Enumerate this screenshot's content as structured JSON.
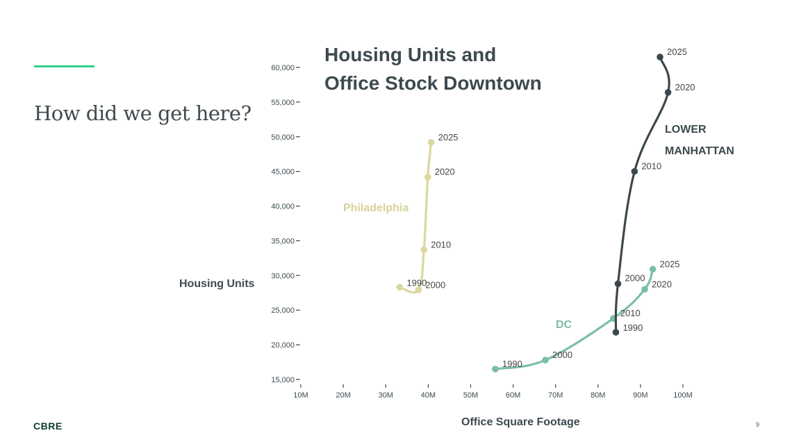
{
  "slide": {
    "heading": "How did we get here?",
    "logo": "CBRE",
    "page_number": "9",
    "colors": {
      "accent_rule": "#2fd18a"
    }
  },
  "chart_data": {
    "type": "line",
    "title_lines": [
      "Housing Units and",
      "Office Stock Downtown"
    ],
    "xlabel": "Office Square Footage",
    "ylabel": "Housing Units",
    "xlim": [
      10,
      100
    ],
    "ylim": [
      15000,
      60000
    ],
    "x_ticks": [
      {
        "value": 10,
        "label": "10M"
      },
      {
        "value": 20,
        "label": "20M"
      },
      {
        "value": 30,
        "label": "30M"
      },
      {
        "value": 40,
        "label": "40M"
      },
      {
        "value": 50,
        "label": "50M"
      },
      {
        "value": 60,
        "label": "60M"
      },
      {
        "value": 70,
        "label": "70M"
      },
      {
        "value": 80,
        "label": "80M"
      },
      {
        "value": 90,
        "label": "90M"
      },
      {
        "value": 100,
        "label": "100M"
      }
    ],
    "y_ticks": [
      {
        "value": 15000,
        "label": "15,000"
      },
      {
        "value": 20000,
        "label": "20,000"
      },
      {
        "value": 25000,
        "label": "25,000"
      },
      {
        "value": 30000,
        "label": "30,000"
      },
      {
        "value": 35000,
        "label": "35,000"
      },
      {
        "value": 40000,
        "label": "40,000"
      },
      {
        "value": 45000,
        "label": "45,000"
      },
      {
        "value": 50000,
        "label": "50,000"
      },
      {
        "value": 55000,
        "label": "55,000"
      },
      {
        "value": 60000,
        "label": "60,000"
      }
    ],
    "grid": false,
    "legend": "none (series labeled directly on chart)",
    "series": [
      {
        "name": "Philadelphia",
        "color": "#dcd89e",
        "points": [
          {
            "x": 33.3,
            "y": 28300,
            "label": "1990"
          },
          {
            "x": 37.7,
            "y": 27900,
            "label": "2000"
          },
          {
            "x": 39.0,
            "y": 33700,
            "label": "2010"
          },
          {
            "x": 39.9,
            "y": 44200,
            "label": "2020"
          },
          {
            "x": 40.7,
            "y": 49200,
            "label": "2025"
          }
        ]
      },
      {
        "name": "DC",
        "color": "#7bbdaa",
        "points": [
          {
            "x": 55.8,
            "y": 16500,
            "label": "1990"
          },
          {
            "x": 67.6,
            "y": 17800,
            "label": "2000"
          },
          {
            "x": 83.6,
            "y": 23800,
            "label": "2010"
          },
          {
            "x": 91.0,
            "y": 28000,
            "label": "2020"
          },
          {
            "x": 92.9,
            "y": 30900,
            "label": "2025"
          }
        ]
      },
      {
        "name_lines": [
          "LOWER",
          "MANHATTAN"
        ],
        "color": "#3c484c",
        "points": [
          {
            "x": 84.2,
            "y": 21800,
            "label": "1990"
          },
          {
            "x": 84.7,
            "y": 28800,
            "label": "2000"
          },
          {
            "x": 88.6,
            "y": 45000,
            "label": "2010"
          },
          {
            "x": 96.5,
            "y": 56400,
            "label": "2020"
          },
          {
            "x": 94.6,
            "y": 61500,
            "label": "2025"
          }
        ]
      }
    ]
  }
}
